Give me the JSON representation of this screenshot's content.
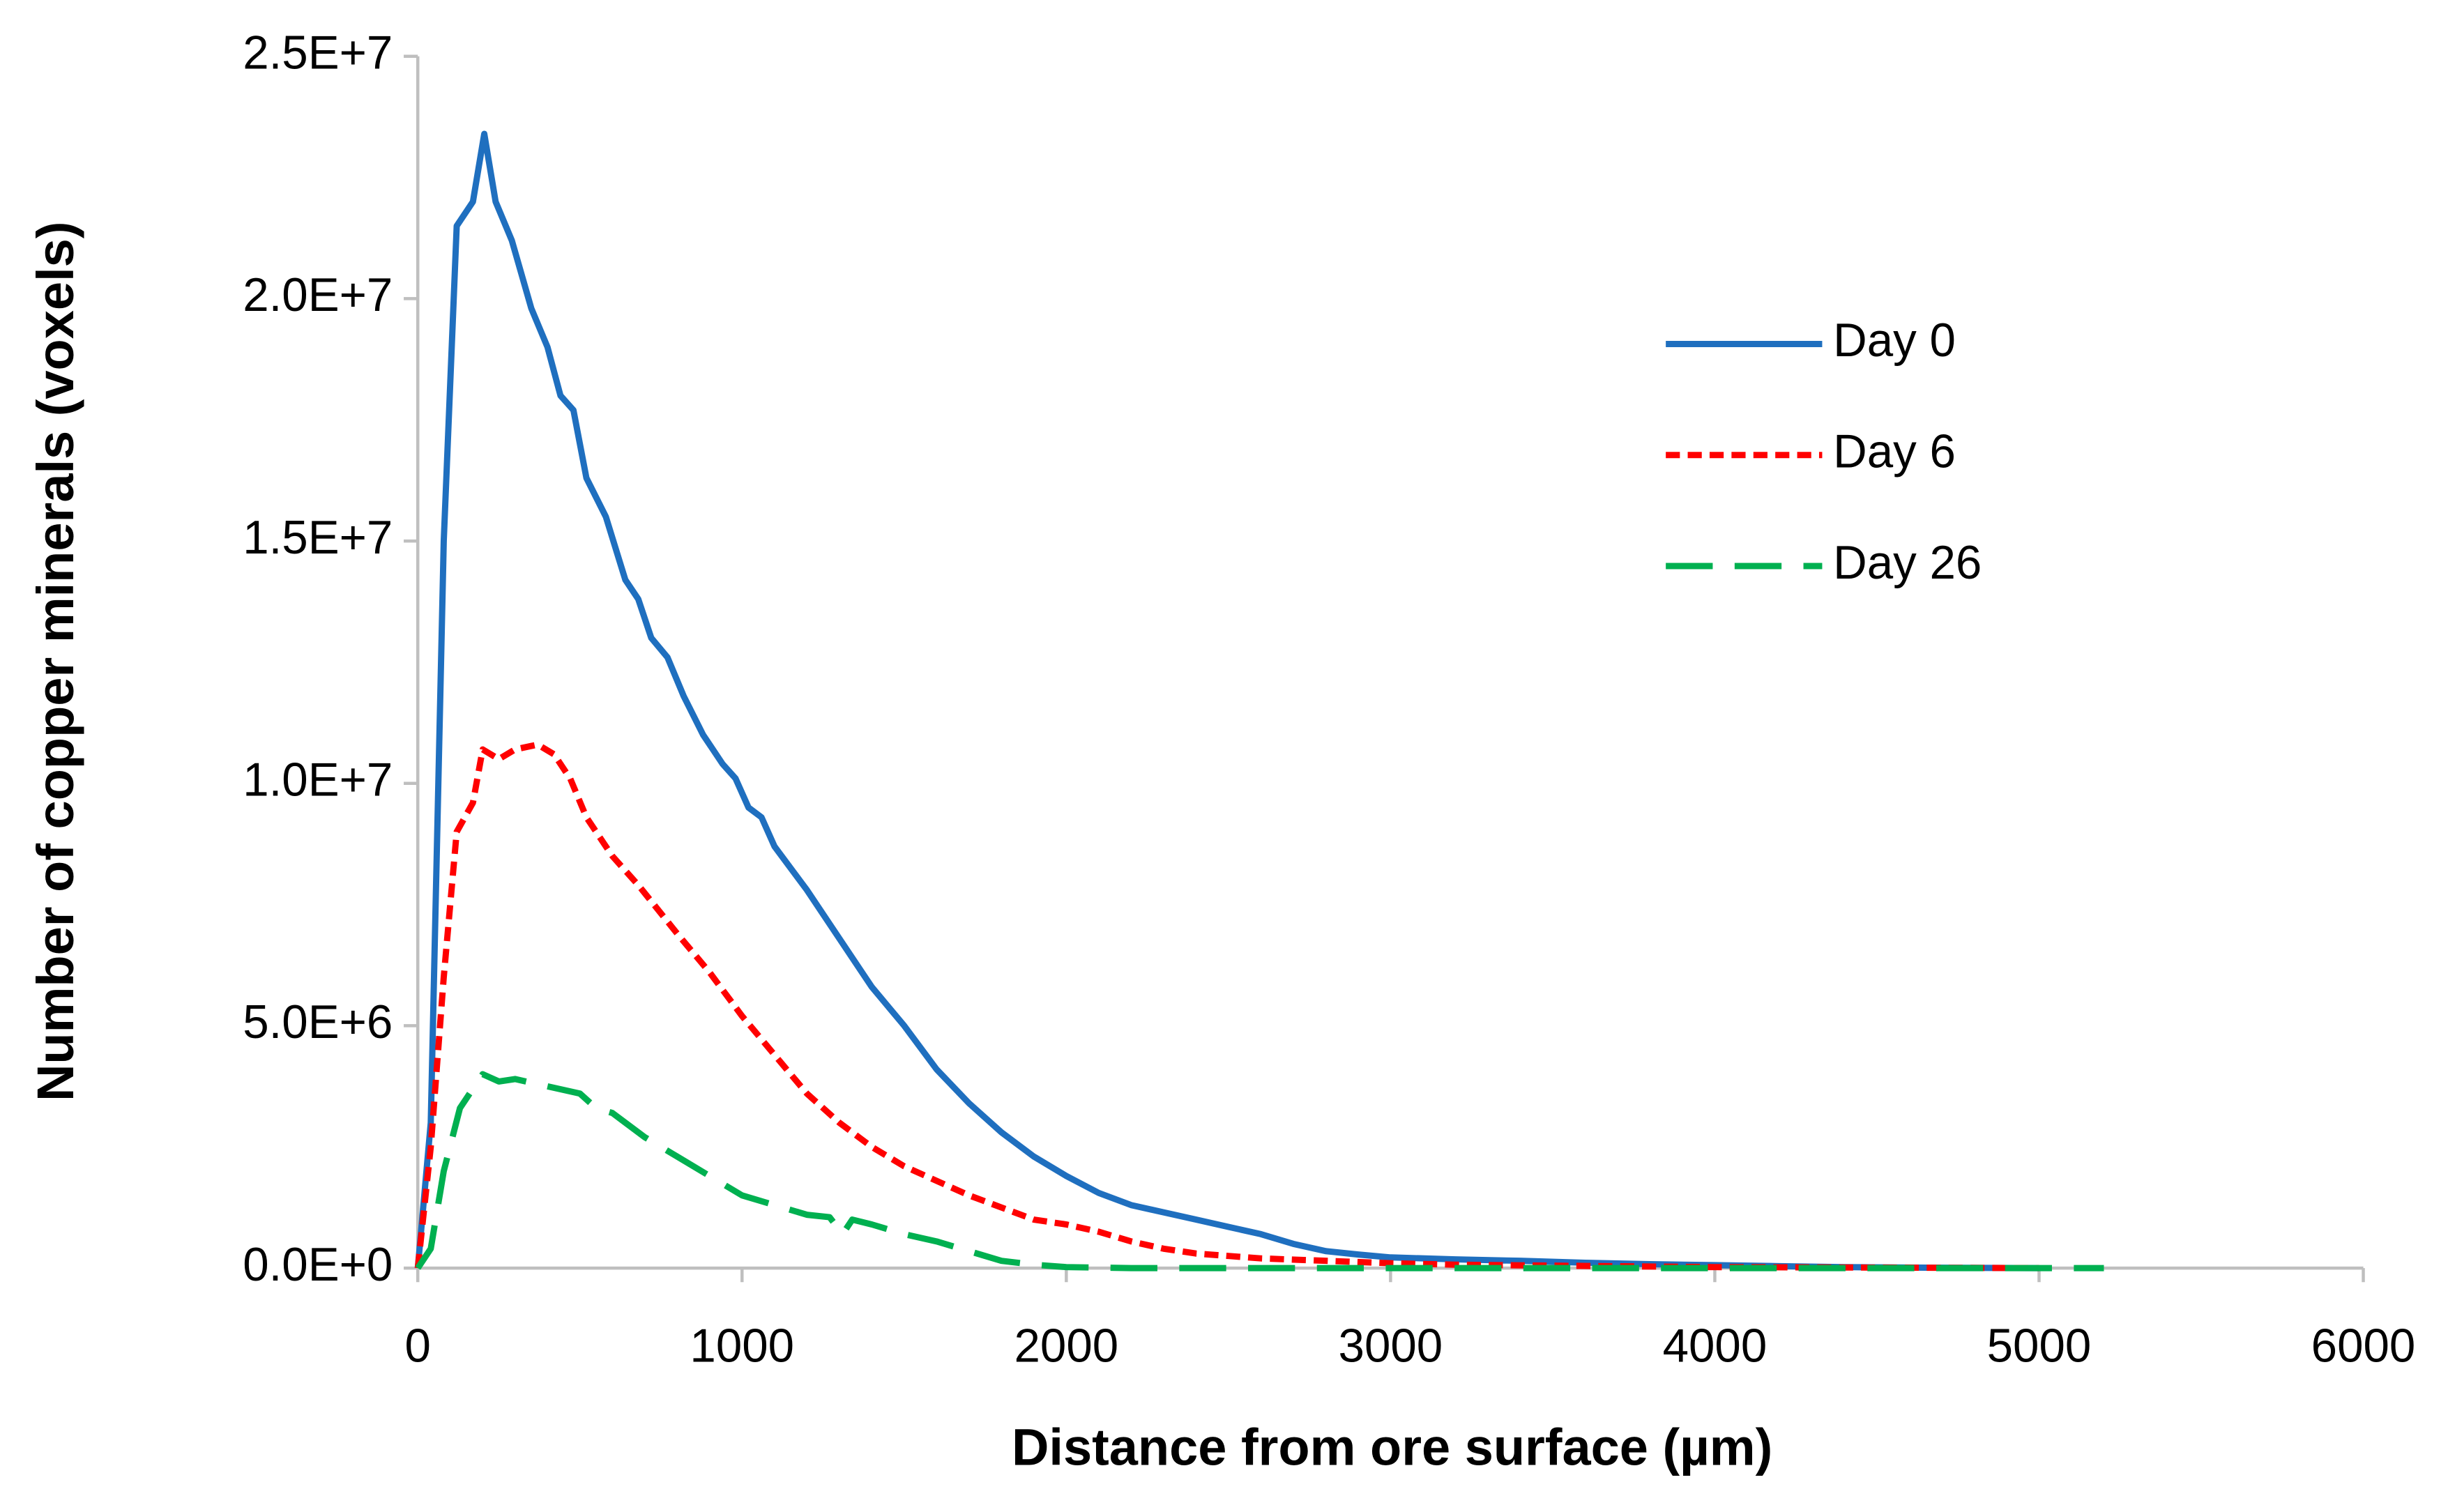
{
  "chart_data": {
    "type": "line",
    "xlabel": "Distance from ore surface (µm)",
    "ylabel": "Number of copper minerals (voxels)",
    "xlim": [
      0,
      6000
    ],
    "xticks": [
      0,
      1000,
      2000,
      3000,
      4000,
      5000,
      6000
    ],
    "ylim": [
      0,
      25000000
    ],
    "yticks": [
      {
        "value": 0,
        "label": "0.0E+0"
      },
      {
        "value": 5000000,
        "label": "5.0E+6"
      },
      {
        "value": 10000000,
        "label": "1.0E+7"
      },
      {
        "value": 15000000,
        "label": "1.5E+7"
      },
      {
        "value": 20000000,
        "label": "2.0E+7"
      },
      {
        "value": 25000000,
        "label": "2.5E+7"
      }
    ],
    "grid": false,
    "legend": "upper right",
    "series": [
      {
        "name": "Day 0",
        "color": "#1f6fbf",
        "style": "solid",
        "x": [
          0,
          40,
          80,
          120,
          170,
          205,
          240,
          290,
          350,
          400,
          440,
          480,
          520,
          580,
          640,
          680,
          720,
          770,
          820,
          880,
          940,
          980,
          1020,
          1060,
          1100,
          1200,
          1300,
          1400,
          1500,
          1600,
          1700,
          1800,
          1900,
          2000,
          2100,
          2200,
          2300,
          2400,
          2500,
          2600,
          2700,
          2800,
          2900,
          3000,
          3200,
          3400,
          3600,
          3800,
          4000,
          4200,
          4400,
          4600,
          5000
        ],
        "values": [
          0,
          3000000,
          15000000,
          21500000,
          22000000,
          23400000,
          22000000,
          21200000,
          19800000,
          19000000,
          18000000,
          17700000,
          16300000,
          15500000,
          14200000,
          13800000,
          13000000,
          12600000,
          11800000,
          11000000,
          10400000,
          10100000,
          9500000,
          9300000,
          8700000,
          7800000,
          6800000,
          5800000,
          5000000,
          4100000,
          3400000,
          2800000,
          2300000,
          1900000,
          1550000,
          1300000,
          1150000,
          1000000,
          850000,
          700000,
          500000,
          350000,
          280000,
          220000,
          180000,
          150000,
          110000,
          80000,
          60000,
          40000,
          20000,
          10000,
          0
        ]
      },
      {
        "name": "Day 6",
        "color": "#ff0000",
        "style": "dotted",
        "x": [
          0,
          40,
          80,
          120,
          170,
          200,
          250,
          300,
          370,
          420,
          470,
          520,
          600,
          680,
          800,
          900,
          1000,
          1100,
          1200,
          1300,
          1400,
          1500,
          1600,
          1700,
          1800,
          1900,
          2000,
          2100,
          2200,
          2300,
          2400,
          2500,
          2600,
          2800,
          3000,
          3200,
          3500,
          4000,
          4500,
          5000
        ],
        "values": [
          0,
          2500000,
          6000000,
          9000000,
          9600000,
          10700000,
          10500000,
          10700000,
          10800000,
          10600000,
          10100000,
          9300000,
          8500000,
          7900000,
          6900000,
          6100000,
          5200000,
          4400000,
          3600000,
          3000000,
          2500000,
          2100000,
          1800000,
          1500000,
          1250000,
          1000000,
          900000,
          750000,
          550000,
          400000,
          300000,
          250000,
          200000,
          150000,
          100000,
          70000,
          50000,
          20000,
          10000,
          0
        ]
      },
      {
        "name": "Day 26",
        "color": "#00b050",
        "style": "dashed",
        "x": [
          0,
          40,
          80,
          130,
          200,
          250,
          300,
          400,
          500,
          550,
          600,
          700,
          800,
          900,
          1000,
          1100,
          1200,
          1270,
          1310,
          1340,
          1400,
          1500,
          1600,
          1700,
          1800,
          1900,
          2000,
          2200,
          3000,
          4000,
          5200
        ],
        "values": [
          0,
          400000,
          2000000,
          3300000,
          4000000,
          3850000,
          3900000,
          3750000,
          3600000,
          3300000,
          3200000,
          2700000,
          2300000,
          1900000,
          1500000,
          1300000,
          1100000,
          1050000,
          700000,
          1000000,
          900000,
          700000,
          550000,
          350000,
          150000,
          70000,
          20000,
          0,
          0,
          0,
          0
        ]
      }
    ]
  }
}
